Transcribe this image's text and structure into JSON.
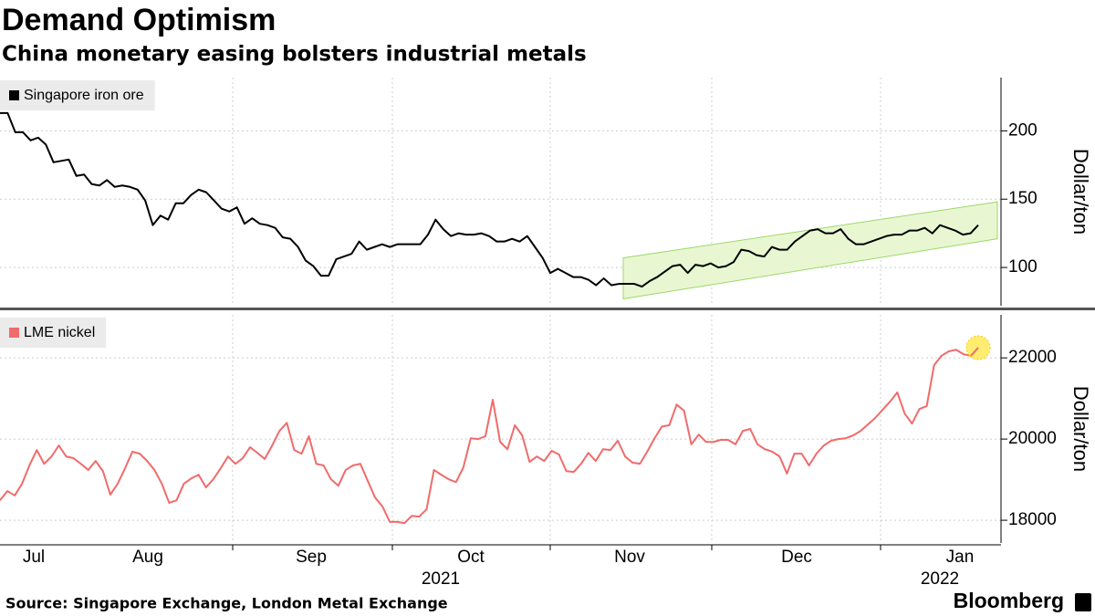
{
  "title": "Demand Optimism",
  "subtitle": "China monetary easing bolsters industrial metals",
  "source": "Source: Singapore Exchange, London Metal Exchange",
  "brand": "Bloomberg",
  "xlabels": [
    "Jul",
    "Aug",
    "Sep",
    "Oct",
    "Nov",
    "Dec",
    "Jan"
  ],
  "year_labels": [
    "2021",
    "2022"
  ],
  "chart_data": [
    {
      "type": "line",
      "y_label": "Dollar/ton",
      "ylim": [
        72,
        239
      ],
      "yticks": [
        100,
        150,
        200
      ],
      "grid": true,
      "channel": {
        "lower": [
          77,
          121
        ],
        "upper": [
          107,
          148
        ],
        "color": "#e8f7d2",
        "edge": "#9ed86a"
      },
      "series": [
        {
          "name": "Singapore iron ore",
          "color": "#000000",
          "values": [
            213,
            213,
            199,
            199,
            193,
            195,
            190,
            177,
            178,
            179,
            167,
            168,
            161,
            160,
            164,
            159,
            160,
            159,
            157,
            149,
            131,
            138,
            135,
            147,
            147,
            153,
            157,
            155,
            149,
            143,
            141,
            144,
            132,
            136,
            132,
            131,
            129,
            122,
            121,
            115,
            105,
            101,
            94,
            94,
            106,
            108,
            110,
            119,
            113,
            115,
            117,
            115,
            117,
            117,
            117,
            117,
            124,
            135,
            128,
            123,
            125,
            124,
            124,
            125,
            123,
            119,
            119,
            121,
            119,
            123,
            115,
            107,
            96,
            99,
            96,
            93,
            93,
            91,
            87,
            92,
            87,
            88,
            88,
            88,
            86,
            90,
            93,
            97,
            101,
            102,
            96,
            102,
            101,
            103,
            100,
            101,
            104,
            113,
            112,
            109,
            108,
            115,
            113,
            113,
            119,
            123,
            127,
            128,
            125,
            125,
            128,
            121,
            117,
            117,
            119,
            121,
            123,
            124,
            124,
            127,
            127,
            129,
            125,
            131,
            129,
            127,
            124,
            125,
            131
          ]
        }
      ]
    },
    {
      "type": "line",
      "y_label": "Dollar/ton",
      "ylim": [
        17440,
        23060
      ],
      "yticks": [
        18000,
        20000,
        22000
      ],
      "grid": true,
      "highlight_color": "#ffe94d",
      "series": [
        {
          "name": "LME nickel",
          "color": "#f06b6b",
          "values": [
            18490,
            18720,
            18610,
            18900,
            19350,
            19730,
            19390,
            19570,
            19840,
            19570,
            19530,
            19390,
            19240,
            19460,
            19210,
            18630,
            18900,
            19280,
            19690,
            19640,
            19460,
            19240,
            18900,
            18430,
            18490,
            18900,
            19030,
            19120,
            18810,
            19010,
            19280,
            19570,
            19390,
            19530,
            19800,
            19660,
            19510,
            19840,
            20200,
            20400,
            19730,
            19640,
            20070,
            19390,
            19350,
            19010,
            18850,
            19240,
            19350,
            19390,
            18970,
            18560,
            18340,
            17960,
            17960,
            17930,
            18110,
            18090,
            18270,
            19240,
            19120,
            19010,
            18940,
            19300,
            20020,
            20000,
            20070,
            20970,
            19930,
            19750,
            20340,
            20090,
            19440,
            19570,
            19460,
            19710,
            19620,
            19210,
            19190,
            19390,
            19660,
            19460,
            19750,
            19730,
            19960,
            19570,
            19420,
            19390,
            19690,
            20020,
            20310,
            20340,
            20850,
            20700,
            19870,
            20110,
            19930,
            19930,
            19980,
            19980,
            19870,
            20200,
            20250,
            19870,
            19750,
            19690,
            19570,
            19150,
            19640,
            19640,
            19350,
            19640,
            19840,
            19960,
            20000,
            20020,
            20090,
            20200,
            20360,
            20520,
            20720,
            20920,
            21150,
            20630,
            20380,
            20740,
            20810,
            21820,
            22050,
            22160,
            22200,
            22090,
            22050,
            22250
          ]
        }
      ]
    }
  ]
}
